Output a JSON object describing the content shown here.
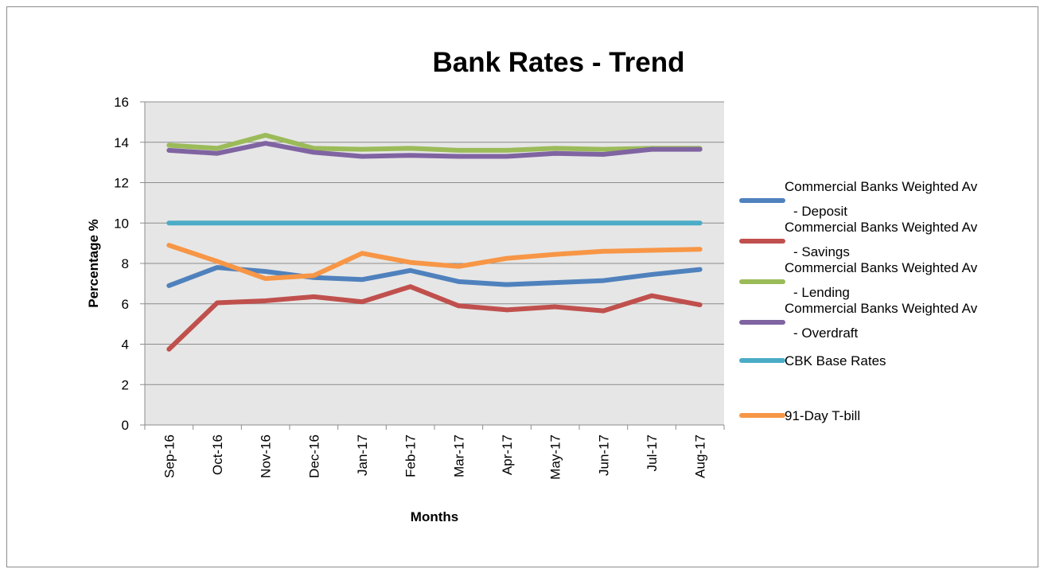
{
  "chart_data": {
    "type": "line",
    "title": "Bank Rates - Trend",
    "xlabel": "Months",
    "ylabel": "Percentage %",
    "ylim": [
      0,
      16
    ],
    "yticks": [
      0,
      2,
      4,
      6,
      8,
      10,
      12,
      14,
      16
    ],
    "grid": "horizontal",
    "legend_position": "right",
    "categories": [
      "Sep-16",
      "Oct-16",
      "Nov-16",
      "Dec-16",
      "Jan-17",
      "Feb-17",
      "Mar-17",
      "Apr-17",
      "May-17",
      "Jun-17",
      "Jul-17",
      "Aug-17"
    ],
    "series": [
      {
        "name": "Commercial Banks Weighted Av - Deposit",
        "legend_lines": [
          "Commercial Banks Weighted Av",
          "- Deposit"
        ],
        "color": "#4f81bd",
        "values": [
          6.9,
          7.8,
          7.6,
          7.3,
          7.2,
          7.65,
          7.1,
          6.95,
          7.05,
          7.15,
          7.45,
          7.7
        ]
      },
      {
        "name": "Commercial Banks Weighted Av - Savings",
        "legend_lines": [
          "Commercial Banks Weighted Av",
          "- Savings"
        ],
        "color": "#c0504d",
        "values": [
          3.75,
          6.05,
          6.15,
          6.35,
          6.1,
          6.85,
          5.9,
          5.7,
          5.85,
          5.65,
          6.4,
          5.95
        ]
      },
      {
        "name": "Commercial Banks Weighted Av - Lending",
        "legend_lines": [
          "Commercial Banks Weighted Av",
          "- Lending"
        ],
        "color": "#9bbb59",
        "values": [
          13.85,
          13.7,
          14.35,
          13.7,
          13.65,
          13.7,
          13.6,
          13.6,
          13.7,
          13.65,
          13.7,
          13.7
        ]
      },
      {
        "name": "Commercial Banks Weighted Av - Overdraft",
        "legend_lines": [
          "Commercial Banks Weighted Av",
          "- Overdraft"
        ],
        "color": "#8064a2",
        "values": [
          13.6,
          13.45,
          13.95,
          13.5,
          13.3,
          13.35,
          13.3,
          13.3,
          13.45,
          13.4,
          13.65,
          13.65
        ]
      },
      {
        "name": "CBK Base Rates",
        "legend_lines": [
          "CBK Base Rates"
        ],
        "color": "#4bacc6",
        "values": [
          10,
          10,
          10,
          10,
          10,
          10,
          10,
          10,
          10,
          10,
          10,
          10
        ]
      },
      {
        "name": "91-Day T-bill",
        "legend_lines": [
          "91-Day T-bill"
        ],
        "color": "#f79646",
        "values": [
          8.9,
          8.1,
          7.25,
          7.4,
          8.5,
          8.05,
          7.85,
          8.25,
          8.45,
          8.6,
          8.65,
          8.7
        ]
      }
    ]
  }
}
